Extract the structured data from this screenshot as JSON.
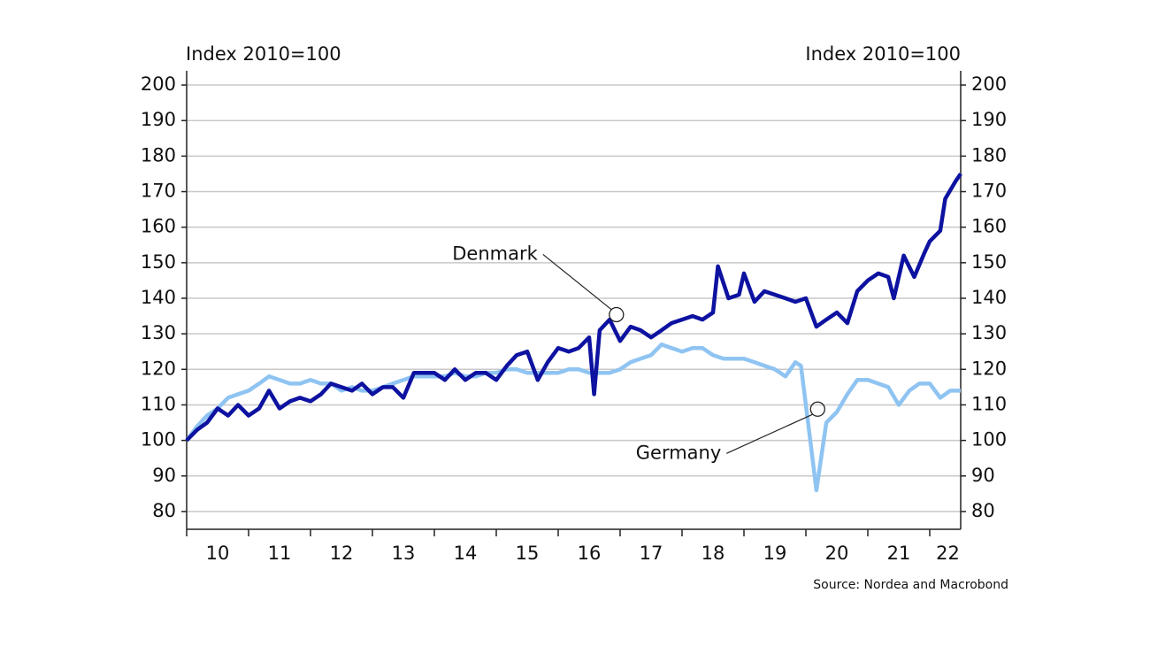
{
  "chart_data": {
    "type": "line",
    "ylabel": "Index 2010=100",
    "y2label": "Index 2010=100",
    "source": "Source: Nordea and Macrobond",
    "xlim": [
      10,
      22.5
    ],
    "xticks": [
      10,
      11,
      12,
      13,
      14,
      15,
      16,
      17,
      18,
      19,
      20,
      21,
      22
    ],
    "ylim": [
      75,
      204
    ],
    "yticks": [
      80,
      90,
      100,
      110,
      120,
      130,
      140,
      150,
      160,
      170,
      180,
      190,
      200
    ],
    "y2lim": [
      75,
      204
    ],
    "y2ticks": [
      80,
      90,
      100,
      110,
      120,
      130,
      140,
      150,
      160,
      170,
      180,
      190,
      200
    ],
    "grid": true,
    "series": [
      {
        "name": "Germany",
        "color": "#8fc4f2",
        "x": [
          10.0,
          10.17,
          10.33,
          10.5,
          10.67,
          10.83,
          11.0,
          11.17,
          11.33,
          11.5,
          11.67,
          11.83,
          12.0,
          12.17,
          12.33,
          12.5,
          12.67,
          12.83,
          13.0,
          13.17,
          13.33,
          13.5,
          13.67,
          13.83,
          14.0,
          14.17,
          14.33,
          14.5,
          14.67,
          14.83,
          15.0,
          15.17,
          15.33,
          15.5,
          15.67,
          15.83,
          16.0,
          16.17,
          16.33,
          16.5,
          16.67,
          16.83,
          17.0,
          17.17,
          17.33,
          17.5,
          17.67,
          17.83,
          18.0,
          18.17,
          18.33,
          18.5,
          18.67,
          18.83,
          19.0,
          19.17,
          19.33,
          19.5,
          19.67,
          19.83,
          19.92,
          20.0,
          20.17,
          20.33,
          20.5,
          20.67,
          20.83,
          21.0,
          21.17,
          21.33,
          21.5,
          21.67,
          21.83,
          22.0,
          22.17,
          22.33,
          22.5
        ],
        "values": [
          100,
          104,
          107,
          109,
          112,
          113,
          114,
          116,
          118,
          117,
          116,
          116,
          117,
          116,
          116,
          114,
          115,
          114,
          114,
          115,
          116,
          117,
          118,
          118,
          118,
          118,
          119,
          118,
          118,
          119,
          119,
          120,
          120,
          119,
          119,
          119,
          119,
          120,
          120,
          119,
          119,
          119,
          120,
          122,
          123,
          124,
          127,
          126,
          125,
          126,
          126,
          124,
          123,
          123,
          123,
          122,
          121,
          120,
          118,
          122,
          121,
          110,
          86,
          105,
          108,
          113,
          117,
          117,
          116,
          115,
          110,
          114,
          116,
          116,
          112,
          114,
          114
        ]
      },
      {
        "name": "Denmark",
        "color": "#0d12a0",
        "x": [
          10.0,
          10.17,
          10.33,
          10.5,
          10.67,
          10.83,
          11.0,
          11.17,
          11.33,
          11.5,
          11.67,
          11.83,
          12.0,
          12.17,
          12.33,
          12.5,
          12.67,
          12.83,
          13.0,
          13.17,
          13.33,
          13.5,
          13.67,
          13.83,
          14.0,
          14.17,
          14.33,
          14.5,
          14.67,
          14.83,
          15.0,
          15.17,
          15.33,
          15.5,
          15.67,
          15.83,
          16.0,
          16.17,
          16.33,
          16.5,
          16.58,
          16.67,
          16.83,
          17.0,
          17.17,
          17.33,
          17.5,
          17.67,
          17.83,
          18.0,
          18.17,
          18.33,
          18.5,
          18.58,
          18.75,
          18.92,
          19.0,
          19.17,
          19.33,
          19.5,
          19.67,
          19.83,
          20.0,
          20.17,
          20.33,
          20.5,
          20.67,
          20.83,
          21.0,
          21.17,
          21.33,
          21.42,
          21.58,
          21.75,
          21.92,
          22.0,
          22.17,
          22.25,
          22.42,
          22.5
        ],
        "values": [
          100,
          103,
          105,
          109,
          107,
          110,
          107,
          109,
          114,
          109,
          111,
          112,
          111,
          113,
          116,
          115,
          114,
          116,
          113,
          115,
          115,
          112,
          119,
          119,
          119,
          117,
          120,
          117,
          119,
          119,
          117,
          121,
          124,
          125,
          117,
          122,
          126,
          125,
          126,
          129,
          113,
          131,
          134,
          128,
          132,
          131,
          129,
          131,
          133,
          134,
          135,
          134,
          136,
          149,
          140,
          141,
          147,
          139,
          142,
          141,
          140,
          139,
          140,
          132,
          134,
          136,
          133,
          142,
          145,
          147,
          146,
          140,
          152,
          146,
          153,
          156,
          159,
          168,
          173,
          175
        ]
      }
    ],
    "annotations": [
      {
        "text": "Denmark",
        "x": 16.94,
        "y": 135.4
      },
      {
        "text": "Germany",
        "x": 20.19,
        "y": 108.8
      }
    ]
  }
}
